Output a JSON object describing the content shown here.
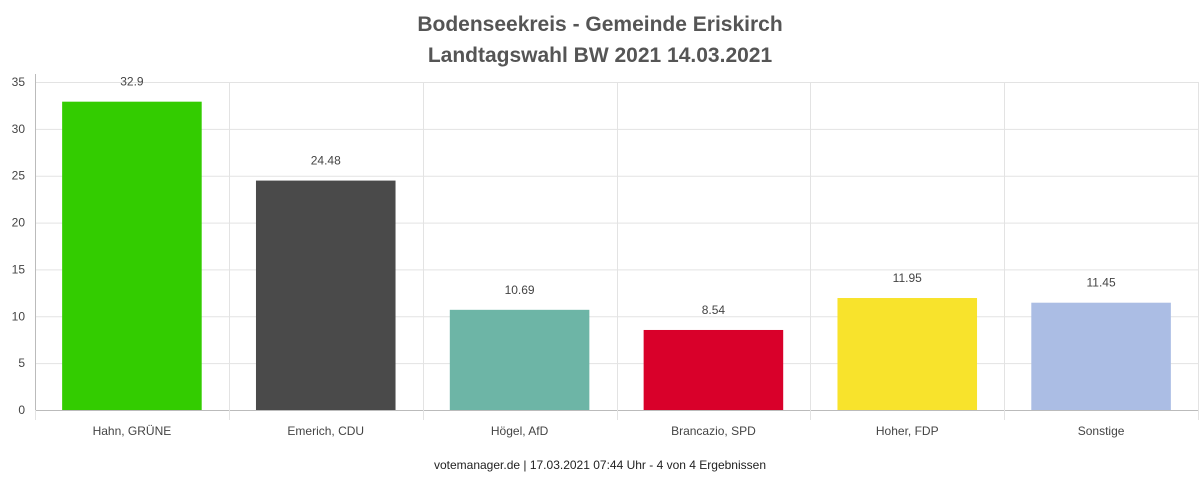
{
  "chart_data": {
    "type": "bar",
    "title": [
      "Bodenseekreis - Gemeinde Eriskirch",
      "Landtagswahl BW 2021 14.03.2021"
    ],
    "categories": [
      "Hahn, GRÜNE",
      "Emerich, CDU",
      "Högel, AfD",
      "Brancazio, SPD",
      "Hoher, FDP",
      "Sonstige"
    ],
    "values": [
      32.9,
      24.48,
      10.69,
      8.54,
      11.95,
      11.45
    ],
    "data_labels": [
      "32.9",
      "24.48",
      "10.69",
      "8.54",
      "11.95",
      "11.45"
    ],
    "colors": [
      "#33cc00",
      "#4a4a4a",
      "#6db5a6",
      "#d9002a",
      "#f8e32c",
      "#abbde4"
    ],
    "ylim": [
      0,
      35
    ],
    "yticks": [
      "0",
      "5",
      "10",
      "15",
      "20",
      "25",
      "30",
      "35"
    ],
    "grid": true,
    "xlabel": "",
    "ylabel": ""
  },
  "footer": "votemanager.de | 17.03.2021 07:44 Uhr - 4 von 4 Ergebnissen"
}
